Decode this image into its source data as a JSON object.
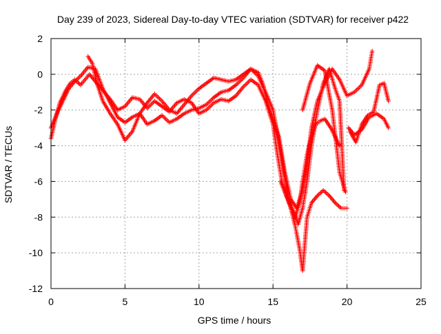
{
  "chart_data": {
    "type": "scatter",
    "title": "Day 239 of 2023, Sidereal Day-to-day VTEC variation (SDTVAR) for receiver p422",
    "xlabel": "GPS time / hours",
    "ylabel": "SDTVAR / TECUs",
    "xlim": [
      0,
      25
    ],
    "ylim": [
      -12,
      2
    ],
    "x_ticks": [
      0,
      5,
      10,
      15,
      20,
      25
    ],
    "y_ticks": [
      -12,
      -10,
      -8,
      -6,
      -4,
      -2,
      0,
      2
    ],
    "x_tick_labels": [
      "0",
      "5",
      "10",
      "15",
      "20",
      "25"
    ],
    "y_tick_labels": [
      "-12",
      "-10",
      "-8",
      "-6",
      "-4",
      "-2",
      "0",
      "2"
    ],
    "grid": true,
    "marker": "plus",
    "color": "#ff0000",
    "series": [
      {
        "x": [
          0.0,
          0.3,
          0.6,
          1.0,
          1.3,
          1.6,
          2.0,
          2.3,
          2.6,
          3.0,
          3.5,
          4.0,
          4.5,
          5.0,
          5.5,
          6.0,
          6.5,
          7.0,
          7.5,
          8.0,
          8.5,
          9.0,
          9.5,
          10.0,
          10.5,
          11.0,
          11.5,
          12.0,
          12.5,
          13.0,
          13.5,
          14.0,
          14.5,
          15.0,
          15.3,
          15.6,
          15.9,
          16.2,
          16.5,
          16.8,
          17.0,
          17.3,
          17.6,
          17.9,
          18.2,
          18.5,
          18.9,
          19.2,
          19.5,
          19.8,
          20.1,
          20.5,
          21.0,
          21.5,
          22.0,
          22.5,
          22.8
        ],
        "values": [
          -3.6,
          -2.5,
          -1.6,
          -0.9,
          -0.5,
          -0.3,
          -0.6,
          -0.3,
          0.0,
          -0.4,
          -0.9,
          -1.4,
          -2.0,
          -1.8,
          -1.3,
          -1.4,
          -1.9,
          -1.5,
          -1.8,
          -2.1,
          -1.6,
          -1.4,
          -1.6,
          -2.2,
          -2.0,
          -1.6,
          -1.4,
          -1.5,
          -1.2,
          -0.7,
          -0.3,
          -0.6,
          -1.5,
          -2.8,
          -4.5,
          -6.0,
          -6.8,
          -7.5,
          -8.0,
          -7.2,
          -6.0,
          -4.5,
          -3.5,
          -2.8,
          -2.6,
          -2.5,
          -3.0,
          -3.5,
          -4.0,
          null,
          -3.0,
          -3.4,
          -3.1,
          -2.4,
          -2.2,
          -2.5,
          -3.0
        ]
      },
      {
        "x": [
          0.0,
          0.4,
          0.8,
          1.2,
          1.6,
          2.0,
          2.5,
          3.0,
          3.5,
          4.0,
          4.5,
          5.0,
          5.5,
          6.0,
          6.5,
          7.0,
          7.5,
          8.0,
          8.5,
          9.0,
          9.5,
          10.0,
          10.5,
          11.0,
          11.5,
          12.0,
          12.5,
          13.0,
          13.5,
          14.0,
          14.5,
          15.0,
          15.4,
          15.8,
          16.2,
          16.5,
          16.8,
          17.0,
          17.3,
          17.6,
          18.0,
          18.4,
          18.8,
          19.2,
          19.6,
          20.0
        ],
        "values": [
          -3.0,
          -2.2,
          -1.5,
          -0.8,
          -0.4,
          -0.1,
          0.4,
          0.3,
          -0.8,
          -1.6,
          -2.4,
          -2.7,
          -2.4,
          -2.2,
          -2.8,
          -2.6,
          -2.3,
          -2.7,
          -2.5,
          -2.2,
          -2.0,
          -1.9,
          -1.7,
          -1.3,
          -1.0,
          -0.9,
          -0.6,
          -0.2,
          0.3,
          -0.1,
          -1.0,
          -2.0,
          -3.8,
          -5.8,
          -7.5,
          -8.5,
          -9.8,
          -11.0,
          -8.0,
          -7.2,
          -6.8,
          -6.5,
          -6.8,
          -7.2,
          -7.5,
          -7.5
        ]
      },
      {
        "x": [
          2.5,
          2.8,
          3.1,
          3.5,
          4.0,
          4.5,
          5.0,
          5.5,
          6.0,
          6.5,
          7.0,
          7.5,
          8.0,
          8.5,
          9.0,
          9.5,
          10.0,
          10.5,
          11.0,
          11.5,
          12.0,
          12.5,
          13.0,
          13.5,
          14.0,
          14.3,
          14.6,
          15.0,
          15.4,
          15.8,
          16.2,
          16.6,
          17.0,
          17.3,
          17.6,
          18.0,
          18.5,
          19.0,
          19.5,
          20.0,
          20.5,
          21.0,
          21.5,
          21.7
        ],
        "values": [
          1.0,
          0.6,
          -0.5,
          -1.5,
          -2.2,
          -2.8,
          -3.7,
          -3.2,
          -2.2,
          -1.6,
          -1.1,
          -1.5,
          -2.0,
          -2.2,
          -1.7,
          -1.2,
          -0.8,
          -0.5,
          -0.2,
          -0.3,
          -0.4,
          -0.3,
          0.0,
          0.3,
          0.1,
          -0.5,
          -1.5,
          -2.5,
          -3.5,
          -5.5,
          -7.0,
          -7.5,
          -6.5,
          -5.0,
          -3.0,
          -1.5,
          -0.5,
          0.3,
          -0.3,
          -1.2,
          -1.0,
          -0.6,
          0.3,
          1.3
        ]
      },
      {
        "x": [
          15.5,
          15.8,
          16.1,
          16.4,
          16.7,
          17.0,
          17.3,
          17.6,
          18.0,
          18.4,
          18.8,
          19.2,
          19.5,
          19.8
        ],
        "values": [
          -6.0,
          -6.6,
          -7.2,
          -7.7,
          -8.4,
          -7.5,
          -6.0,
          -4.0,
          -2.0,
          -0.5,
          0.3,
          -0.8,
          -1.5,
          -6.5
        ]
      },
      {
        "x": [
          17.0,
          17.5,
          18.0,
          18.5,
          19.0,
          19.5,
          19.9
        ],
        "values": [
          -2.0,
          -0.5,
          0.5,
          0.2,
          -2.0,
          -5.5,
          -6.6
        ]
      },
      {
        "x": [
          20.2,
          20.6,
          21.0,
          21.4,
          21.8,
          22.2,
          22.5,
          22.8
        ],
        "values": [
          -3.2,
          -3.8,
          -2.8,
          -2.3,
          -2.1,
          -0.6,
          -0.5,
          -1.5
        ]
      }
    ]
  }
}
